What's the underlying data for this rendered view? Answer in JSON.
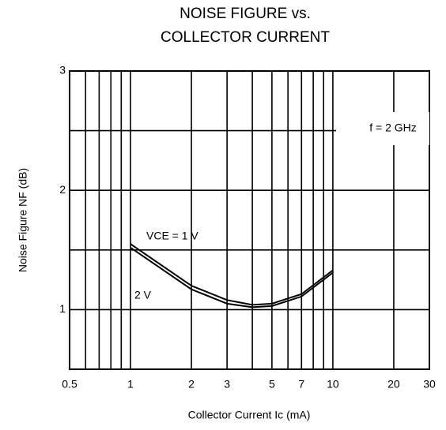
{
  "chart_data": {
    "type": "line",
    "title": [
      "NOISE FIGURE vs.",
      "COLLECTOR CURRENT"
    ],
    "x_label": "Collector Current Ic (mA)",
    "y_label": "Noise Figure NF (dB)",
    "annotation": "f = 2 GHz",
    "log_x": true,
    "xlim": [
      0.5,
      30
    ],
    "xticks": [
      0.5,
      1,
      2,
      3,
      5,
      7,
      10,
      20,
      30
    ],
    "x_minor_ticks": [
      0.6,
      0.7,
      0.8,
      0.9,
      4,
      6,
      8,
      9
    ],
    "ylim": [
      0.5,
      3
    ],
    "yticks": [
      1,
      2,
      3
    ],
    "y_minor_ticks": [
      1.5,
      2.5
    ],
    "grid": true,
    "x": [
      1,
      2,
      3,
      4,
      5,
      7,
      10
    ],
    "series": [
      {
        "name": "VCE = 1 V",
        "color": "#000000",
        "values": [
          1.55,
          1.2,
          1.08,
          1.04,
          1.05,
          1.13,
          1.33
        ]
      },
      {
        "name": "2 V",
        "color": "#000000",
        "values": [
          1.52,
          1.17,
          1.05,
          1.02,
          1.03,
          1.11,
          1.31
        ]
      }
    ]
  }
}
